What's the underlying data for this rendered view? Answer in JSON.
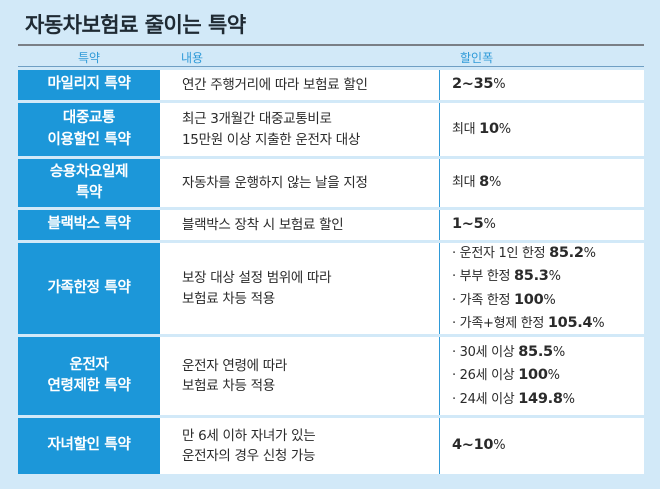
{
  "title": "자동차보험료 줄이는 특약",
  "headers": {
    "col1": "특약",
    "col2": "내용",
    "col3": "할인폭"
  },
  "rows": [
    {
      "label": "마일리지 특약",
      "content": "연간 주행거리에 따라 보험료 할인",
      "discount": [
        {
          "prefix": "",
          "value": "2~35",
          "suffix": "%"
        }
      ]
    },
    {
      "label": "대중교통\n이용할인 특약",
      "content": "최근 3개월간 대중교통비로\n15만원 이상 지출한 운전자 대상",
      "discount": [
        {
          "prefix": "최대 ",
          "value": "10",
          "suffix": "%"
        }
      ]
    },
    {
      "label": "승용차요일제\n특약",
      "content": "자동차를 운행하지 않는 날을 지정",
      "discount": [
        {
          "prefix": "최대 ",
          "value": "8",
          "suffix": "%"
        }
      ]
    },
    {
      "label": "블랙박스 특약",
      "content": "블랙박스 장착 시 보험료 할인",
      "discount": [
        {
          "prefix": "",
          "value": "1~5",
          "suffix": "%"
        }
      ]
    },
    {
      "label": "가족한정 특약",
      "content": "보장 대상 설정 범위에 따라\n보험료 차등 적용",
      "discount": [
        {
          "prefix": "· 운전자 1인 한정 ",
          "value": "85.2",
          "suffix": "%"
        },
        {
          "prefix": "· 부부 한정 ",
          "value": "85.3",
          "suffix": "%"
        },
        {
          "prefix": "· 가족 한정 ",
          "value": "100",
          "suffix": "%"
        },
        {
          "prefix": "· 가족+형제 한정 ",
          "value": "105.4",
          "suffix": "%"
        }
      ]
    },
    {
      "label": "운전자\n연령제한 특약",
      "content": "운전자 연령에 따라\n보험료 차등 적용",
      "discount": [
        {
          "prefix": "· 30세 이상 ",
          "value": "85.5",
          "suffix": "%"
        },
        {
          "prefix": "· 26세 이상 ",
          "value": "100",
          "suffix": "%"
        },
        {
          "prefix": "· 24세 이상 ",
          "value": "149.8",
          "suffix": "%"
        }
      ]
    },
    {
      "label": "자녀할인 특약",
      "content": "만 6세 이하 자녀가 있는\n운전자의 경우 신청 가능",
      "discount": [
        {
          "prefix": "",
          "value": "4~10",
          "suffix": "%"
        }
      ]
    }
  ]
}
